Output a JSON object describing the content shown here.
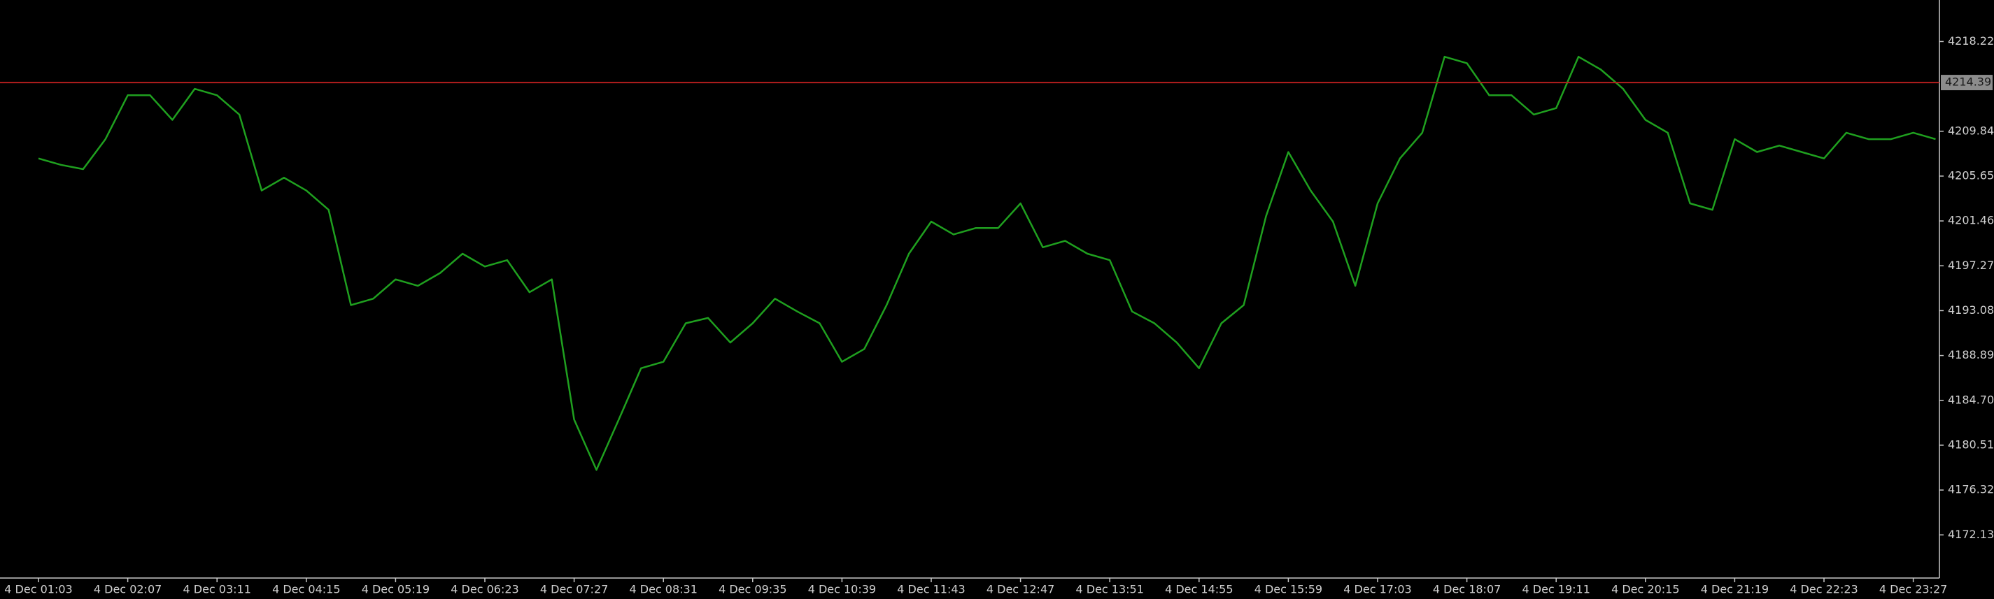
{
  "chart_data": {
    "type": "line",
    "categories": [
      "4 Dec 01:03",
      null,
      null,
      null,
      "4 Dec 02:07",
      null,
      null,
      null,
      "4 Dec 03:11",
      null,
      null,
      null,
      "4 Dec 04:15",
      null,
      null,
      null,
      "4 Dec 05:19",
      null,
      null,
      null,
      "4 Dec 06:23",
      null,
      null,
      null,
      "4 Dec 07:27",
      null,
      null,
      null,
      "4 Dec 08:31",
      null,
      null,
      null,
      "4 Dec 09:35",
      null,
      null,
      null,
      "4 Dec 10:39",
      null,
      null,
      null,
      "4 Dec 11:43",
      null,
      null,
      null,
      "4 Dec 12:47",
      null,
      null,
      null,
      "4 Dec 13:51",
      null,
      null,
      null,
      "4 Dec 14:55",
      null,
      null,
      null,
      "4 Dec 15:59",
      null,
      null,
      null,
      "4 Dec 17:03",
      null,
      null,
      null,
      "4 Dec 18:07",
      null,
      null,
      null,
      "4 Dec 19:11",
      null,
      null,
      null,
      "4 Dec 20:15",
      null,
      null,
      null,
      "4 Dec 21:19",
      null,
      null,
      null,
      "4 Dec 22:23",
      null,
      null,
      null,
      "4 Dec 23:27",
      null
    ],
    "series": [
      {
        "color": "#1fa01f",
        "values": [
          4207.3,
          4206.7,
          4206.3,
          4209.1,
          4213.2,
          4213.2,
          4210.9,
          4213.8,
          4213.2,
          4211.4,
          4204.3,
          4205.5,
          4204.3,
          4202.5,
          4193.6,
          4194.2,
          4196.0,
          4195.4,
          4196.6,
          4198.4,
          4197.2,
          4197.8,
          4194.8,
          4196.0,
          4182.9,
          4178.2,
          4182.9,
          4187.7,
          4188.3,
          4191.9,
          4192.4,
          4190.1,
          4191.9,
          4194.2,
          4193.0,
          4191.9,
          4188.3,
          4189.5,
          4193.6,
          4198.4,
          4201.4,
          4200.2,
          4200.8,
          4200.8,
          4203.1,
          4199.0,
          4199.6,
          4198.4,
          4197.8,
          4193.0,
          4191.9,
          4190.1,
          4187.7,
          4191.9,
          4193.6,
          4201.9,
          4207.9,
          4204.3,
          4201.4,
          4195.4,
          4203.1,
          4207.3,
          4209.7,
          4216.8,
          4216.2,
          4213.2,
          4213.2,
          4211.4,
          4212.0,
          4216.8,
          4215.6,
          4213.8,
          4210.9,
          4209.7,
          4203.1,
          4202.5,
          4209.1,
          4207.9,
          4208.5,
          4207.9,
          4207.3,
          4209.7,
          4209.1,
          4209.1,
          4209.7,
          4209.1
        ]
      }
    ],
    "ylim": [
      4168.1,
      4222.1
    ],
    "yticks": [
      4218.22,
      4209.84,
      4205.65,
      4201.46,
      4197.27,
      4193.08,
      4188.89,
      {
        "value": 4184.7,
        "label": "4184.70"
      },
      4180.51,
      4176.32,
      4172.13
    ],
    "price_line": {
      "value": 4214.39,
      "color": "#b41e1e"
    },
    "grid": false
  }
}
